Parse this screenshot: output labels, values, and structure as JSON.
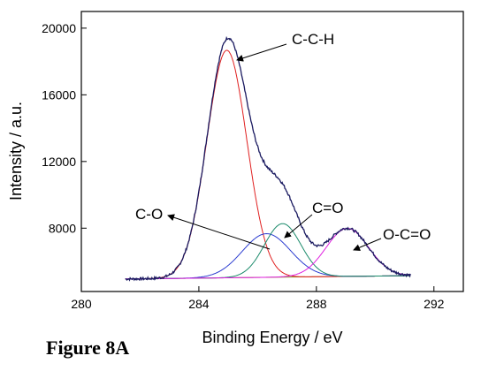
{
  "figure": {
    "caption": "Figure 8A"
  },
  "chart_data": {
    "type": "line",
    "xlabel": "Binding Energy / eV",
    "ylabel": "Intensity / a.u.",
    "xlim": [
      280,
      293
    ],
    "ylim": [
      4200,
      21000
    ],
    "x_ticks": [
      280,
      284,
      288,
      292
    ],
    "y_ticks": [
      8000,
      12000,
      16000,
      20000
    ],
    "baseline": {
      "x": [
        281.5,
        291.2
      ],
      "y": [
        4950,
        5150
      ]
    },
    "components": [
      {
        "label": "C-C-H",
        "color": "#e02020",
        "center": 284.95,
        "amplitude": 13650,
        "sigma": 0.68
      },
      {
        "label": "C-O",
        "color": "#2b3cd0",
        "center": 286.3,
        "amplitude": 2620,
        "sigma": 0.82
      },
      {
        "label": "C=O",
        "color": "#1a8a6a",
        "center": 286.85,
        "amplitude": 3210,
        "sigma": 0.62
      },
      {
        "label": "O-C=O",
        "color": "#e020e0",
        "center": 289.05,
        "amplitude": 2880,
        "sigma": 0.72
      }
    ],
    "envelope": {
      "color": "#1a1a60"
    },
    "annotations": [
      {
        "label": "C-C-H",
        "x": 284.95,
        "y": 18900
      },
      {
        "label": "C-O",
        "x": 286.3,
        "y": 7650
      },
      {
        "label": "C=O",
        "x": 286.85,
        "y": 8250
      },
      {
        "label": "O-C=O",
        "x": 289.05,
        "y": 7900
      }
    ],
    "grid": false,
    "legend": "none"
  }
}
